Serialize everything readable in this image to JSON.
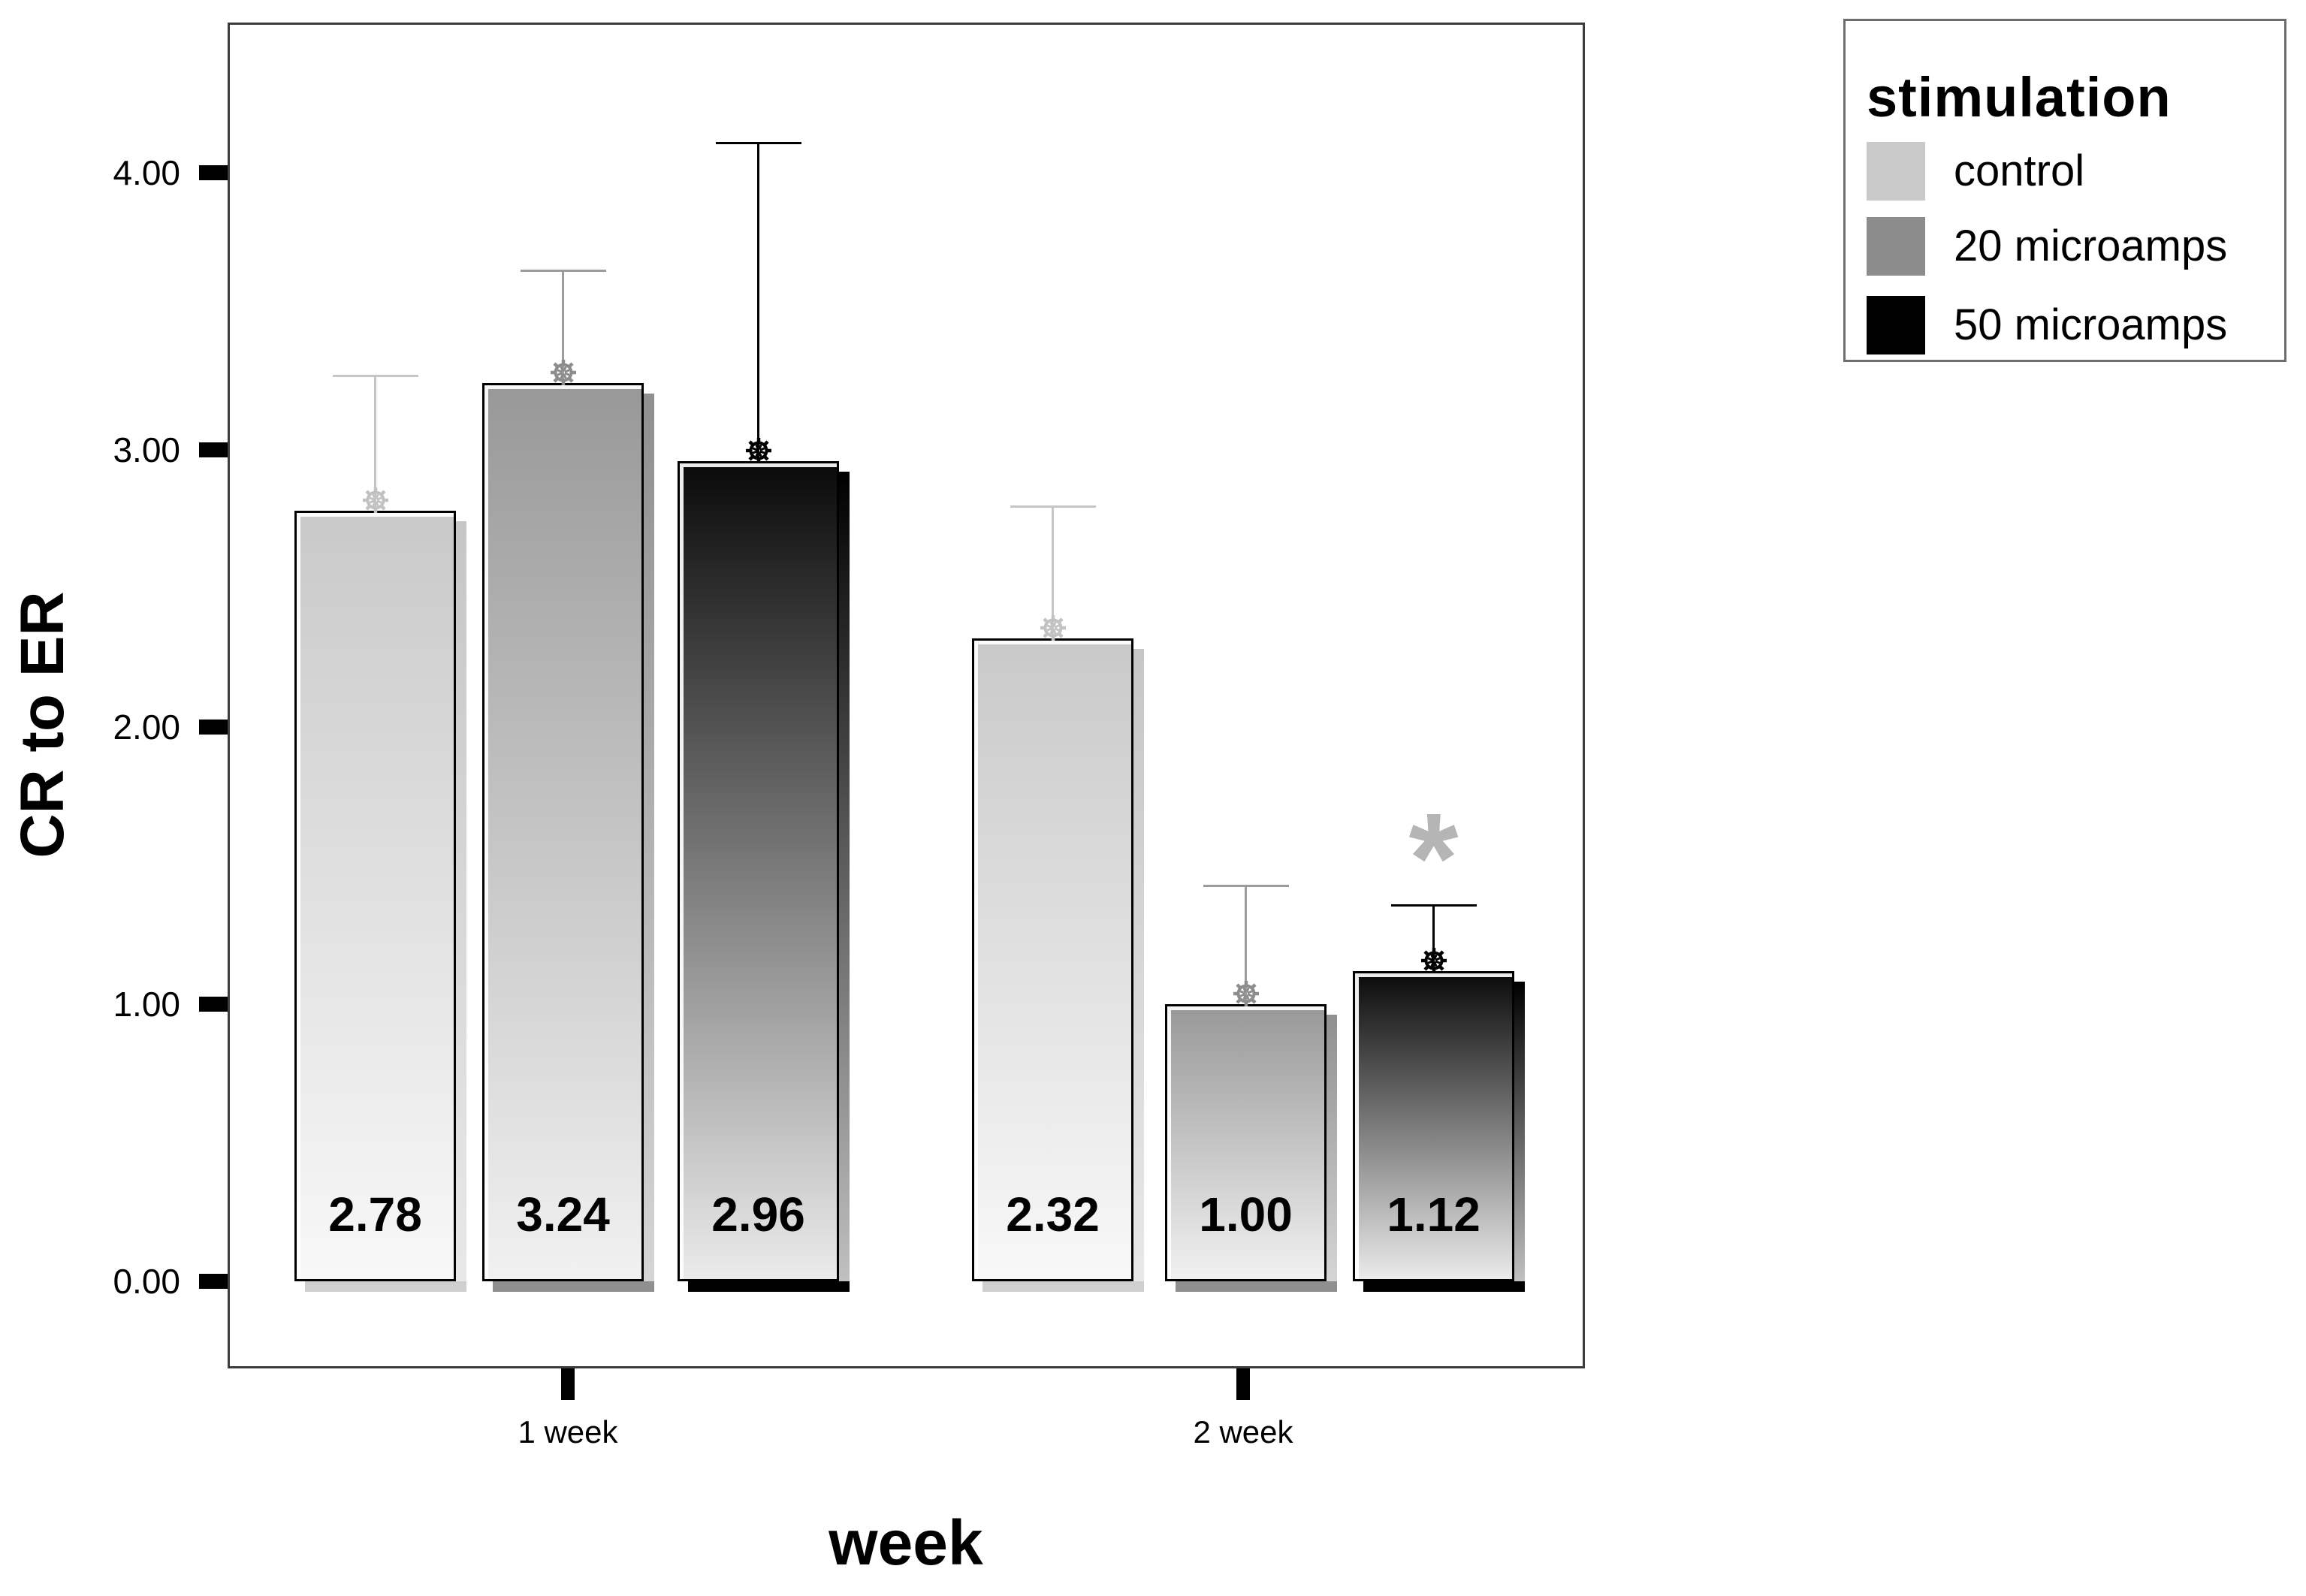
{
  "chart_data": {
    "type": "bar",
    "title": "",
    "xlabel": "week",
    "ylabel": "CR to ER",
    "categories": [
      "1 week",
      "2 week"
    ],
    "ytick_values": [
      0,
      1,
      2,
      3,
      4
    ],
    "ytick_labels": [
      "0.00",
      "1.00",
      "2.00",
      "3.00",
      "4.00"
    ],
    "ylim": [
      0,
      4.54
    ],
    "grid": false,
    "legend_position": "outside-top-right",
    "marker": "gear",
    "series": [
      {
        "name": "control",
        "values": [
          2.78,
          2.32
        ],
        "value_labels": [
          "2.78",
          "2.32"
        ],
        "error_upper": [
          3.27,
          2.8
        ]
      },
      {
        "name": "20 microamps",
        "values": [
          3.24,
          1.0
        ],
        "value_labels": [
          "3.24",
          "1.00"
        ],
        "error_upper": [
          3.65,
          1.43
        ]
      },
      {
        "name": "50 microamps",
        "values": [
          2.96,
          1.12
        ],
        "value_labels": [
          "2.96",
          "1.12"
        ],
        "error_upper": [
          4.11,
          1.36
        ]
      }
    ],
    "annotations": [
      {
        "text": "*",
        "category_index": 1,
        "series_index": 2,
        "y": 1.6
      }
    ]
  },
  "legend": {
    "title": "stimulation",
    "entries": [
      "control",
      "20 microamps",
      "50 microamps"
    ]
  },
  "colors": {
    "fill_top": [
      "#c9c9c9",
      "#989898",
      "#0a0a0a"
    ],
    "fill_bottom": [
      "#f8f8f8",
      "#f1f1f1",
      "#ebebeb"
    ],
    "shadow_right_top": [
      "#c6c6c6",
      "#8f8f8f",
      "#000000"
    ],
    "shadow_right_bottom": [
      "#e8e8e8",
      "#d5d5d5",
      "#c0c0c0"
    ],
    "shadow_band": [
      "#cfcfcf",
      "#8f8f8f",
      "#000000"
    ],
    "error_bar": [
      "#c5c5c5",
      "#9c9c9c",
      "#000000"
    ],
    "marker": [
      "#c2c2c2",
      "#8d8d8d",
      "#000000"
    ],
    "frame": "#3c3c3c",
    "annotation": "#b5b5b5",
    "bar_border": "#000000"
  }
}
